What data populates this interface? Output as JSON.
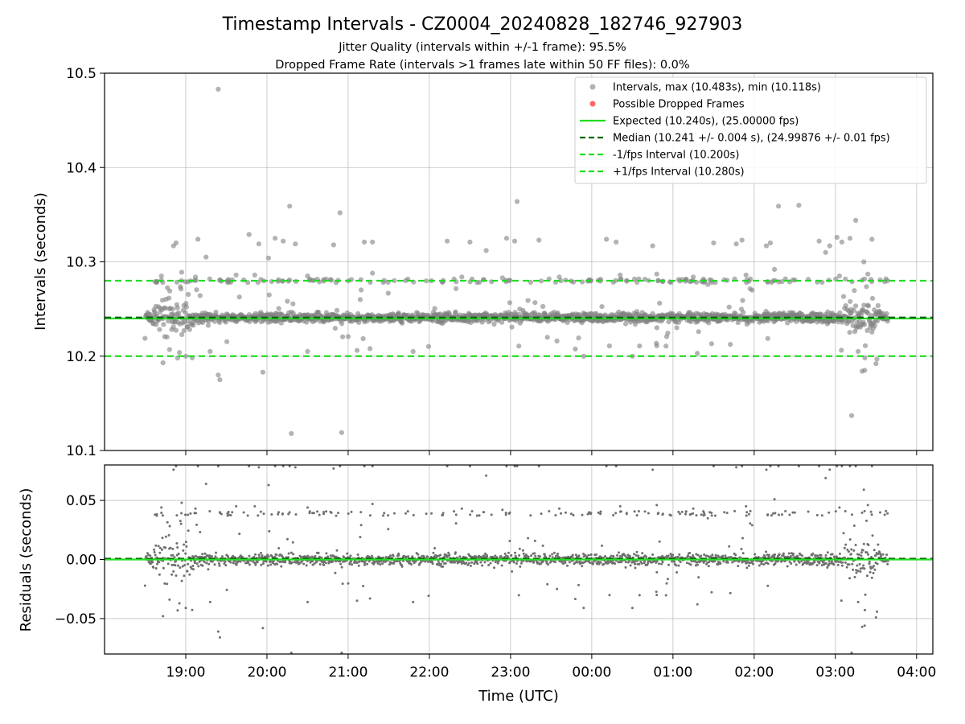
{
  "chart_data": [
    {
      "type": "scatter",
      "title": "Timestamp Intervals - CZ0004_20240828_182746_927903",
      "subtitle_lines": [
        "Jitter Quality (intervals within +/-1 frame): 95.5%",
        "Dropped Frame Rate (intervals >1 frames late within 50 FF files): 0.0%"
      ],
      "ylabel": "Intervals (seconds)",
      "ylim": [
        10.1,
        10.5
      ],
      "yticks": [
        10.1,
        10.2,
        10.3,
        10.4,
        10.5
      ],
      "ytick_labels": [
        "10.1",
        "10.2",
        "10.3",
        "10.4",
        "10.5"
      ],
      "xlim_hours": [
        18.0,
        28.2
      ],
      "grid": true,
      "legend_position": "top-right",
      "reference_lines": [
        {
          "name": "Expected (10.240s), (25.00000 fps)",
          "value": 10.24,
          "style": "solid",
          "color": "#22dd22"
        },
        {
          "name": "Median (10.241 +/- 0.004 s), (24.99876 +/- 0.01 fps)",
          "value": 10.241,
          "style": "dashed",
          "color": "#006400"
        },
        {
          "name": "-1/fps Interval (10.200s)",
          "value": 10.2,
          "style": "dashed",
          "color": "#22dd22"
        },
        {
          "name": "+1/fps Interval (10.280s)",
          "value": 10.28,
          "style": "dashed",
          "color": "#22dd22"
        }
      ],
      "series": [
        {
          "name": "Intervals, max (10.483s), min (10.118s)",
          "color": "#808080",
          "marker": "circle"
        },
        {
          "name": "Possible Dropped Frames",
          "color": "#ff5555",
          "marker": "circle"
        }
      ],
      "time_range_hours": [
        18.5,
        27.65
      ],
      "baseline": 10.241,
      "outliers_above": [
        [
          18.85,
          10.317
        ],
        [
          18.88,
          10.32
        ],
        [
          19.15,
          10.324
        ],
        [
          19.25,
          10.305
        ],
        [
          19.4,
          10.483
        ],
        [
          19.78,
          10.329
        ],
        [
          19.9,
          10.319
        ],
        [
          20.02,
          10.304
        ],
        [
          20.1,
          10.325
        ],
        [
          20.2,
          10.322
        ],
        [
          20.28,
          10.359
        ],
        [
          20.35,
          10.319
        ],
        [
          20.82,
          10.318
        ],
        [
          20.9,
          10.352
        ],
        [
          21.2,
          10.321
        ],
        [
          21.3,
          10.321
        ],
        [
          22.22,
          10.322
        ],
        [
          22.5,
          10.321
        ],
        [
          22.7,
          10.312
        ],
        [
          22.95,
          10.325
        ],
        [
          23.05,
          10.322
        ],
        [
          23.08,
          10.364
        ],
        [
          23.35,
          10.323
        ],
        [
          24.18,
          10.324
        ],
        [
          24.3,
          10.321
        ],
        [
          24.75,
          10.317
        ],
        [
          25.5,
          10.32
        ],
        [
          25.78,
          10.319
        ],
        [
          25.85,
          10.323
        ],
        [
          26.15,
          10.317
        ],
        [
          26.2,
          10.32
        ],
        [
          26.3,
          10.359
        ],
        [
          26.55,
          10.36
        ],
        [
          26.8,
          10.322
        ],
        [
          26.88,
          10.31
        ],
        [
          26.93,
          10.317
        ],
        [
          27.02,
          10.326
        ],
        [
          27.08,
          10.321
        ],
        [
          27.18,
          10.325
        ],
        [
          27.25,
          10.344
        ],
        [
          27.35,
          10.3
        ],
        [
          27.45,
          10.324
        ],
        [
          18.7,
          10.285
        ],
        [
          18.95,
          10.289
        ],
        [
          19.12,
          10.284
        ],
        [
          19.42,
          10.281
        ],
        [
          19.62,
          10.286
        ],
        [
          19.85,
          10.286
        ],
        [
          20.5,
          10.285
        ],
        [
          21.3,
          10.288
        ],
        [
          22.4,
          10.284
        ],
        [
          22.9,
          10.283
        ],
        [
          23.6,
          10.284
        ],
        [
          24.35,
          10.286
        ],
        [
          24.8,
          10.287
        ],
        [
          25.25,
          10.284
        ],
        [
          25.9,
          10.286
        ],
        [
          26.25,
          10.292
        ],
        [
          27.05,
          10.285
        ],
        [
          27.4,
          10.287
        ]
      ],
      "outliers_below": [
        [
          18.72,
          10.193
        ],
        [
          18.9,
          10.198
        ],
        [
          19.0,
          10.2
        ],
        [
          19.4,
          10.18
        ],
        [
          19.42,
          10.175
        ],
        [
          19.95,
          10.183
        ],
        [
          20.3,
          10.118
        ],
        [
          20.92,
          10.119
        ],
        [
          23.9,
          10.2
        ],
        [
          24.5,
          10.2
        ],
        [
          25.3,
          10.203
        ],
        [
          27.2,
          10.137
        ],
        [
          27.33,
          10.184
        ],
        [
          27.36,
          10.185
        ],
        [
          27.5,
          10.192
        ],
        [
          18.8,
          10.207
        ],
        [
          19.3,
          10.205
        ],
        [
          20.5,
          10.205
        ],
        [
          21.8,
          10.205
        ],
        [
          24.8,
          10.211
        ],
        [
          27.28,
          10.205
        ]
      ]
    },
    {
      "type": "scatter",
      "ylabel": "Residuals (seconds)",
      "xlabel": "Time (UTC)",
      "ylim": [
        -0.08,
        0.08
      ],
      "yticks": [
        -0.05,
        0.0,
        0.05
      ],
      "ytick_labels": [
        "−0.05",
        "0.00",
        "0.05"
      ],
      "xticks_hours": [
        19,
        20,
        21,
        22,
        23,
        24,
        25,
        26,
        27,
        28
      ],
      "xtick_labels": [
        "19:00",
        "20:00",
        "21:00",
        "22:00",
        "23:00",
        "00:00",
        "01:00",
        "02:00",
        "03:00",
        "04:00"
      ],
      "xlim_hours": [
        18.0,
        28.2
      ],
      "grid": true,
      "reference_line": {
        "value": 0.0,
        "color": "#22dd22"
      },
      "series": [
        {
          "name": "Residuals",
          "color": "#707070",
          "marker": "circle"
        }
      ]
    }
  ]
}
